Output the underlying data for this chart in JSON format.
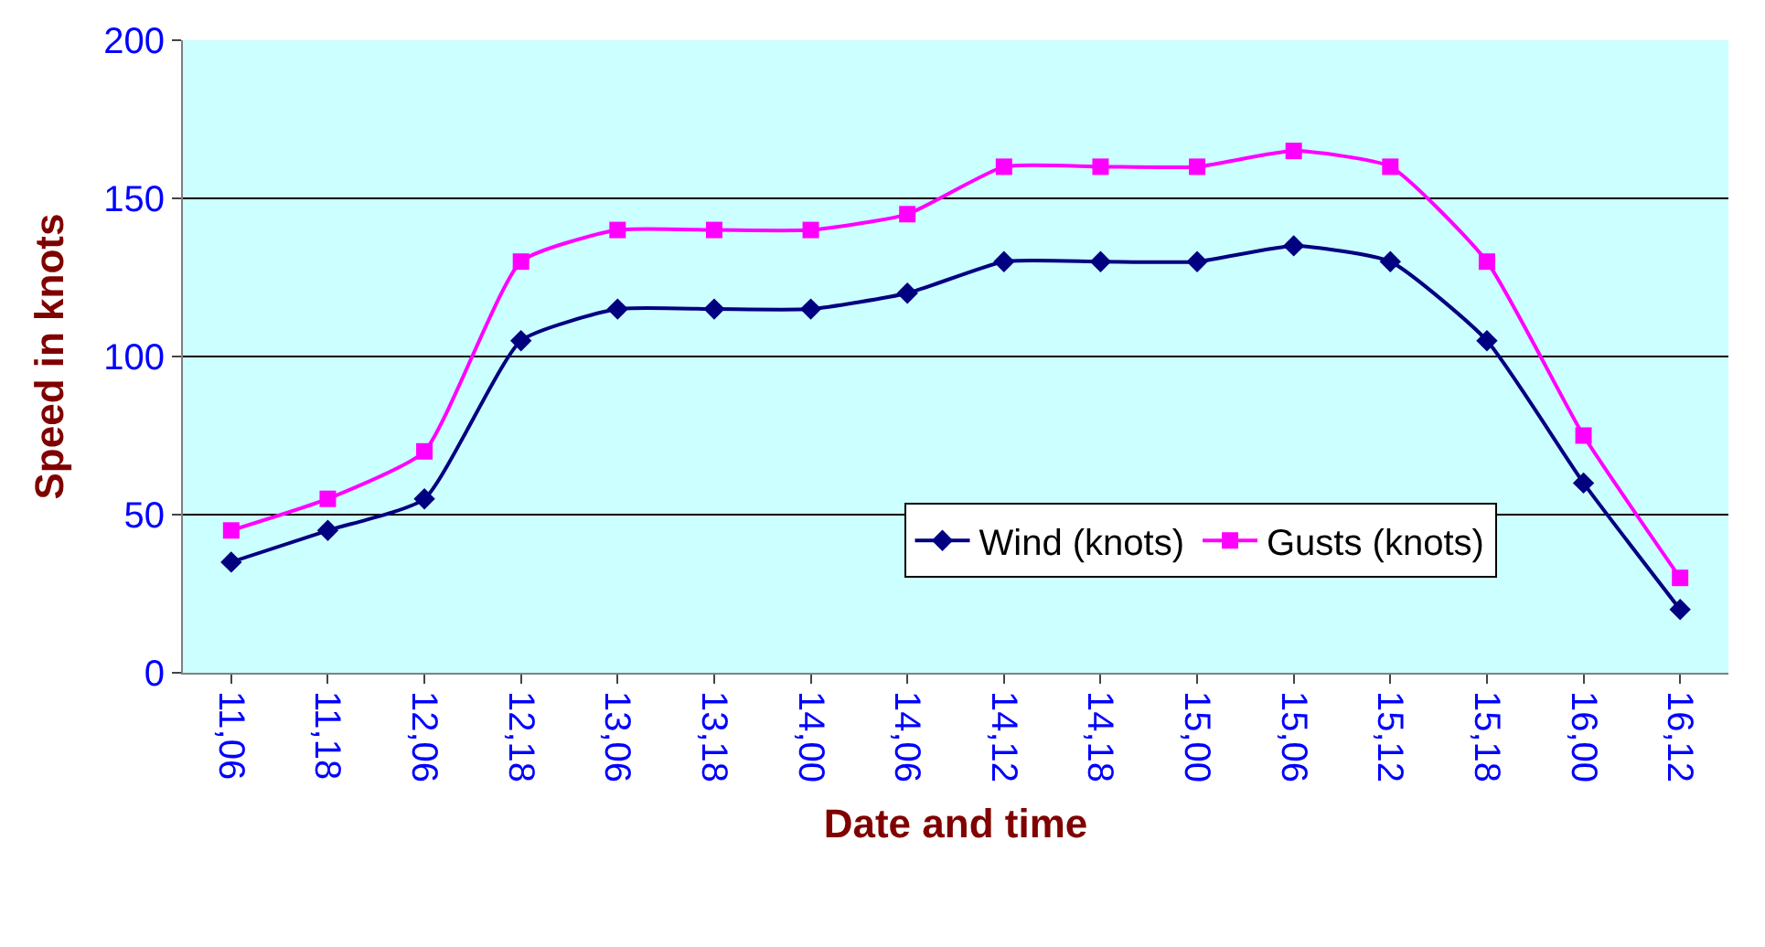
{
  "chart_data": {
    "type": "line",
    "xlabel": "Date and time",
    "ylabel": "Speed in knots",
    "categories": [
      "11,06",
      "11,18",
      "12,06",
      "12,18",
      "13,06",
      "13,18",
      "14,00",
      "14,06",
      "14,12",
      "14,18",
      "15,00",
      "15,06",
      "15,12",
      "15,18",
      "16,00",
      "16,12"
    ],
    "series": [
      {
        "name": "Wind (knots)",
        "color": "#000080",
        "marker": "diamond",
        "values": [
          35,
          45,
          55,
          105,
          115,
          115,
          115,
          120,
          130,
          130,
          130,
          135,
          130,
          105,
          60,
          20
        ]
      },
      {
        "name": "Gusts (knots)",
        "color": "#ff00ff",
        "marker": "square",
        "values": [
          45,
          55,
          70,
          130,
          140,
          140,
          140,
          145,
          160,
          160,
          160,
          165,
          160,
          130,
          75,
          30
        ]
      }
    ],
    "ylim": [
      0,
      200
    ],
    "yticks": [
      0,
      50,
      100,
      150,
      200
    ],
    "grid": "y",
    "legend": "bottom right",
    "line_style": "solid"
  }
}
